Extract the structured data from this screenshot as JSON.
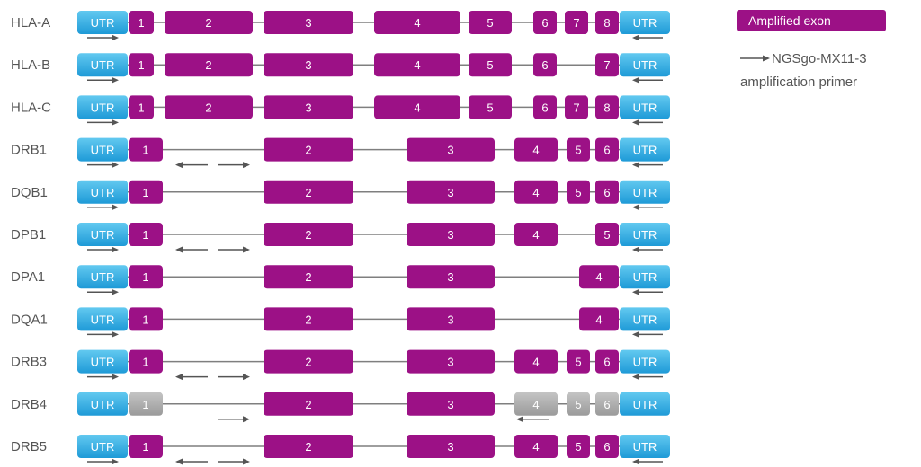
{
  "colors": {
    "amplified": "#9c1186",
    "not_amplified": "#a6a6a6",
    "utr_top": "#62c9f0",
    "utr_bottom": "#1e9ad7",
    "intron": "#7f7f7f",
    "arrow": "#555555",
    "label": "#555555"
  },
  "utr_label": "UTR",
  "legend": {
    "amplified_exon": "Amplified exon",
    "primer_line1": "NGSgo-MX11-3",
    "primer_line2": "amplification primer"
  },
  "genes": [
    {
      "name": "HLA-A",
      "exons": [
        {
          "label": "1",
          "amplified": true
        },
        {
          "label": "2",
          "amplified": true
        },
        {
          "label": "3",
          "amplified": true
        },
        {
          "label": "4",
          "amplified": true
        },
        {
          "label": "5",
          "amplified": true
        },
        {
          "label": "6",
          "amplified": true
        },
        {
          "label": "7",
          "amplified": true
        },
        {
          "label": "8",
          "amplified": true
        }
      ],
      "primers": [
        "utr5-forward",
        "utr3-reverse"
      ]
    },
    {
      "name": "HLA-B",
      "exons": [
        {
          "label": "1",
          "amplified": true
        },
        {
          "label": "2",
          "amplified": true
        },
        {
          "label": "3",
          "amplified": true
        },
        {
          "label": "4",
          "amplified": true
        },
        {
          "label": "5",
          "amplified": true
        },
        {
          "label": "6",
          "amplified": true
        },
        {
          "label": "7",
          "amplified": true
        }
      ],
      "primers": [
        "utr5-forward",
        "utr3-reverse"
      ]
    },
    {
      "name": "HLA-C",
      "exons": [
        {
          "label": "1",
          "amplified": true
        },
        {
          "label": "2",
          "amplified": true
        },
        {
          "label": "3",
          "amplified": true
        },
        {
          "label": "4",
          "amplified": true
        },
        {
          "label": "5",
          "amplified": true
        },
        {
          "label": "6",
          "amplified": true
        },
        {
          "label": "7",
          "amplified": true
        },
        {
          "label": "8",
          "amplified": true
        }
      ],
      "primers": [
        "utr5-forward",
        "utr3-reverse"
      ]
    },
    {
      "name": "DRB1",
      "exons": [
        {
          "label": "1",
          "amplified": true
        },
        {
          "label": "2",
          "amplified": true
        },
        {
          "label": "3",
          "amplified": true
        },
        {
          "label": "4",
          "amplified": true
        },
        {
          "label": "5",
          "amplified": true
        },
        {
          "label": "6",
          "amplified": true
        }
      ],
      "primers": [
        "utr5-forward",
        "utr3-reverse",
        "intron1-reverse",
        "intron1-forward"
      ]
    },
    {
      "name": "DQB1",
      "exons": [
        {
          "label": "1",
          "amplified": true
        },
        {
          "label": "2",
          "amplified": true
        },
        {
          "label": "3",
          "amplified": true
        },
        {
          "label": "4",
          "amplified": true
        },
        {
          "label": "5",
          "amplified": true
        },
        {
          "label": "6",
          "amplified": true
        }
      ],
      "primers": [
        "utr5-forward",
        "utr3-reverse"
      ]
    },
    {
      "name": "DPB1",
      "exons": [
        {
          "label": "1",
          "amplified": true
        },
        {
          "label": "2",
          "amplified": true
        },
        {
          "label": "3",
          "amplified": true
        },
        {
          "label": "4",
          "amplified": true
        },
        {
          "label": "5",
          "amplified": true
        }
      ],
      "primers": [
        "utr5-forward",
        "utr3-reverse",
        "intron1-reverse",
        "intron1-forward"
      ]
    },
    {
      "name": "DPA1",
      "exons": [
        {
          "label": "1",
          "amplified": true
        },
        {
          "label": "2",
          "amplified": true
        },
        {
          "label": "3",
          "amplified": true
        },
        {
          "label": "4",
          "amplified": true
        }
      ],
      "primers": [
        "utr5-forward",
        "utr3-reverse"
      ]
    },
    {
      "name": "DQA1",
      "exons": [
        {
          "label": "1",
          "amplified": true
        },
        {
          "label": "2",
          "amplified": true
        },
        {
          "label": "3",
          "amplified": true
        },
        {
          "label": "4",
          "amplified": true
        }
      ],
      "primers": [
        "utr5-forward",
        "utr3-reverse"
      ]
    },
    {
      "name": "DRB3",
      "exons": [
        {
          "label": "1",
          "amplified": true
        },
        {
          "label": "2",
          "amplified": true
        },
        {
          "label": "3",
          "amplified": true
        },
        {
          "label": "4",
          "amplified": true
        },
        {
          "label": "5",
          "amplified": true
        },
        {
          "label": "6",
          "amplified": true
        }
      ],
      "primers": [
        "utr5-forward",
        "utr3-reverse",
        "intron1-reverse",
        "intron1-forward"
      ]
    },
    {
      "name": "DRB4",
      "exons": [
        {
          "label": "1",
          "amplified": false
        },
        {
          "label": "2",
          "amplified": true
        },
        {
          "label": "3",
          "amplified": true
        },
        {
          "label": "4",
          "amplified": false
        },
        {
          "label": "5",
          "amplified": false
        },
        {
          "label": "6",
          "amplified": false
        }
      ],
      "primers": [
        "intron1-forward",
        "exon4-reverse"
      ]
    },
    {
      "name": "DRB5",
      "exons": [
        {
          "label": "1",
          "amplified": true
        },
        {
          "label": "2",
          "amplified": true
        },
        {
          "label": "3",
          "amplified": true
        },
        {
          "label": "4",
          "amplified": true
        },
        {
          "label": "5",
          "amplified": true
        },
        {
          "label": "6",
          "amplified": true
        }
      ],
      "primers": [
        "utr5-forward",
        "utr3-reverse",
        "intron1-reverse",
        "intron1-forward"
      ]
    }
  ]
}
